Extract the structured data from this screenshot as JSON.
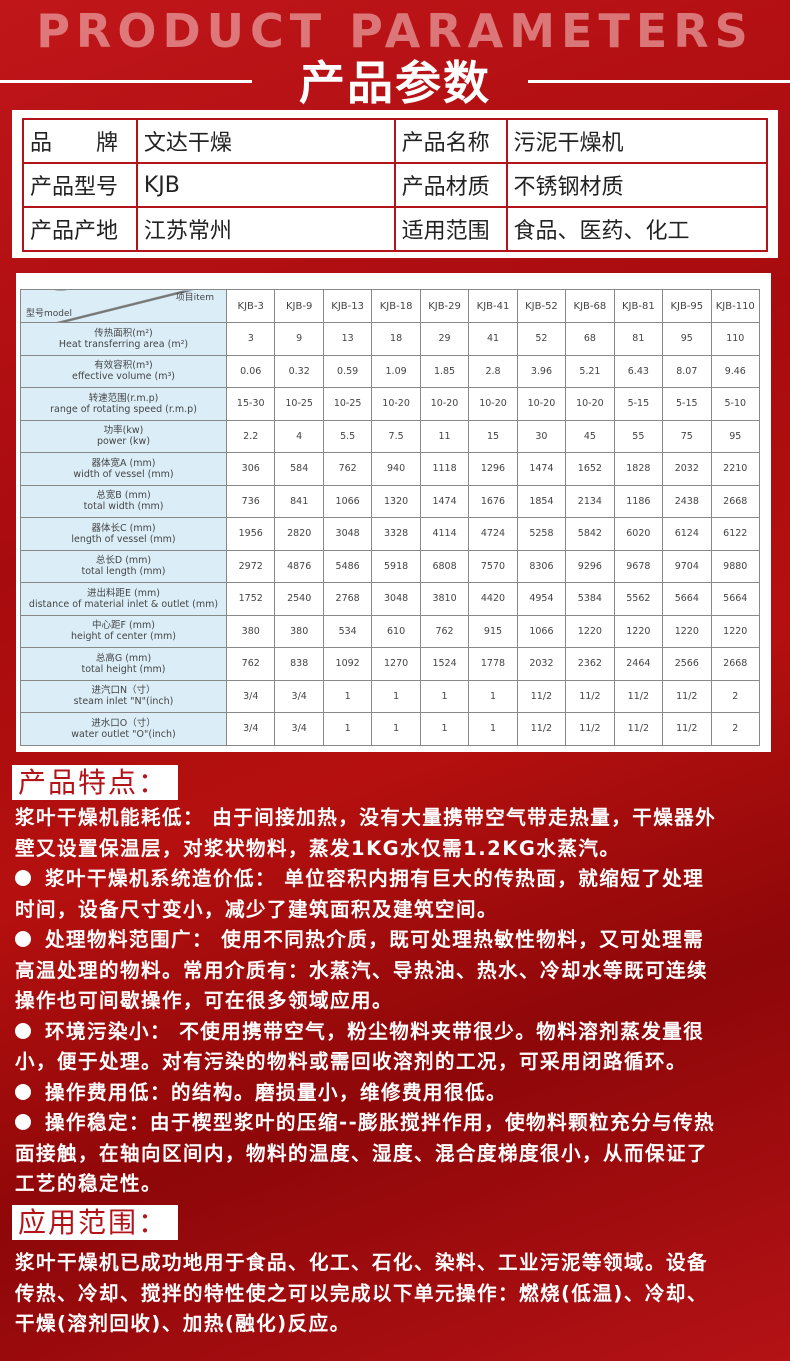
{
  "header": {
    "title_en": "PRODUCT PARAMETERS",
    "title_cn": "产品参数"
  },
  "info": [
    [
      "品　　牌",
      "文达干燥",
      "产品名称",
      "污泥干燥机"
    ],
    [
      "产品型号",
      "KJB",
      "产品材质",
      "不锈钢材质"
    ],
    [
      "产品产地",
      "江苏常州",
      "适用范围",
      "食品、医药、化工"
    ]
  ],
  "spec": {
    "corner_item": "项目item",
    "corner_model": "型号model",
    "models": [
      "KJB-3",
      "KJB-9",
      "KJB-13",
      "KJB-18",
      "KJB-29",
      "KJB-41",
      "KJB-52",
      "KJB-68",
      "KJB-81",
      "KJB-95",
      "KJB-110"
    ],
    "rows": [
      {
        "cn": "传热面积(m²)",
        "en": "Heat transferring area (m²)",
        "values": [
          "3",
          "9",
          "13",
          "18",
          "29",
          "41",
          "52",
          "68",
          "81",
          "95",
          "110"
        ]
      },
      {
        "cn": "有效容积(m³)",
        "en": "effective volume (m³)",
        "values": [
          "0.06",
          "0.32",
          "0.59",
          "1.09",
          "1.85",
          "2.8",
          "3.96",
          "5.21",
          "6.43",
          "8.07",
          "9.46"
        ]
      },
      {
        "cn": "转速范围(r.m.p)",
        "en": "range of rotating speed (r.m.p)",
        "values": [
          "15-30",
          "10-25",
          "10-25",
          "10-20",
          "10-20",
          "10-20",
          "10-20",
          "10-20",
          "5-15",
          "5-15",
          "5-10"
        ]
      },
      {
        "cn": "功率(kw)",
        "en": "power (kw)",
        "values": [
          "2.2",
          "4",
          "5.5",
          "7.5",
          "11",
          "15",
          "30",
          "45",
          "55",
          "75",
          "95"
        ]
      },
      {
        "cn": "器体宽A (mm)",
        "en": "width of vessel (mm)",
        "values": [
          "306",
          "584",
          "762",
          "940",
          "1118",
          "1296",
          "1474",
          "1652",
          "1828",
          "2032",
          "2210"
        ]
      },
      {
        "cn": "总宽B (mm)",
        "en": "total width (mm)",
        "values": [
          "736",
          "841",
          "1066",
          "1320",
          "1474",
          "1676",
          "1854",
          "2134",
          "1186",
          "2438",
          "2668"
        ]
      },
      {
        "cn": "器体长C (mm)",
        "en": "length of vessel (mm)",
        "values": [
          "1956",
          "2820",
          "3048",
          "3328",
          "4114",
          "4724",
          "5258",
          "5842",
          "6020",
          "6124",
          "6122"
        ]
      },
      {
        "cn": "总长D (mm)",
        "en": "total length (mm)",
        "values": [
          "2972",
          "4876",
          "5486",
          "5918",
          "6808",
          "7570",
          "8306",
          "9296",
          "9678",
          "9704",
          "9880"
        ]
      },
      {
        "cn": "进出料距E (mm)",
        "en": "distance of material inlet & outlet (mm)",
        "values": [
          "1752",
          "2540",
          "2768",
          "3048",
          "3810",
          "4420",
          "4954",
          "5384",
          "5562",
          "5664",
          "5664"
        ]
      },
      {
        "cn": "中心距F (mm)",
        "en": "height of center (mm)",
        "values": [
          "380",
          "380",
          "534",
          "610",
          "762",
          "915",
          "1066",
          "1220",
          "1220",
          "1220",
          "1220"
        ]
      },
      {
        "cn": "总高G (mm)",
        "en": "total height (mm)",
        "values": [
          "762",
          "838",
          "1092",
          "1270",
          "1524",
          "1778",
          "2032",
          "2362",
          "2464",
          "2566",
          "2668"
        ]
      },
      {
        "cn": "进汽口N（寸）",
        "en": "steam inlet \"N\"(inch)",
        "values": [
          "3/4",
          "3/4",
          "1",
          "1",
          "1",
          "1",
          "11/2",
          "11/2",
          "11/2",
          "11/2",
          "2"
        ]
      },
      {
        "cn": "进水口O（寸）",
        "en": "water outlet \"O\"(inch)",
        "values": [
          "3/4",
          "3/4",
          "1",
          "1",
          "1",
          "1",
          "11/2",
          "11/2",
          "11/2",
          "11/2",
          "2"
        ]
      }
    ]
  },
  "features": {
    "title": "产品特点：",
    "lines": [
      {
        "bullet": false,
        "text": "浆叶干燥机能耗低： 由于间接加热，没有大量携带空气带走热量，干燥器外"
      },
      {
        "bullet": false,
        "text": "壁又设置保温层，对浆状物料，蒸发1KG水仅需1.2KG水蒸汽。"
      },
      {
        "bullet": true,
        "text": "浆叶干燥机系统造价低： 单位容积内拥有巨大的传热面，就缩短了处理"
      },
      {
        "bullet": false,
        "text": "时间，设备尺寸变小，减少了建筑面积及建筑空间。"
      },
      {
        "bullet": true,
        "text": "处理物料范围广： 使用不同热介质，既可处理热敏性物料，又可处理需"
      },
      {
        "bullet": false,
        "text": "高温处理的物料。常用介质有：水蒸汽、导热油、热水、冷却水等既可连续"
      },
      {
        "bullet": false,
        "text": "操作也可间歇操作，可在很多领域应用。"
      },
      {
        "bullet": true,
        "text": "环境污染小： 不使用携带空气，粉尘物料夹带很少。物料溶剂蒸发量很"
      },
      {
        "bullet": false,
        "text": "小，便于处理。对有污染的物料或需回收溶剂的工况，可采用闭路循环。"
      },
      {
        "bullet": true,
        "text": "操作费用低：的结构。磨损量小，维修费用很低。"
      },
      {
        "bullet": true,
        "text": "操作稳定：由于楔型浆叶的压缩--膨胀搅拌作用，使物料颗粒充分与传热"
      },
      {
        "bullet": false,
        "text": "面接触，在轴向区间内，物料的温度、湿度、混合度梯度很小，从而保证了"
      },
      {
        "bullet": false,
        "text": "工艺的稳定性。"
      }
    ]
  },
  "application": {
    "title": "应用范围：",
    "lines": [
      "浆叶干燥机已成功地用于食品、化工、石化、染料、工业污泥等领域。设备",
      "传热、冷却、搅拌的特性使之可以完成以下单元操作：燃烧(低温)、冷却、",
      "干燥(溶剂回收)、加热(融化)反应。"
    ]
  }
}
